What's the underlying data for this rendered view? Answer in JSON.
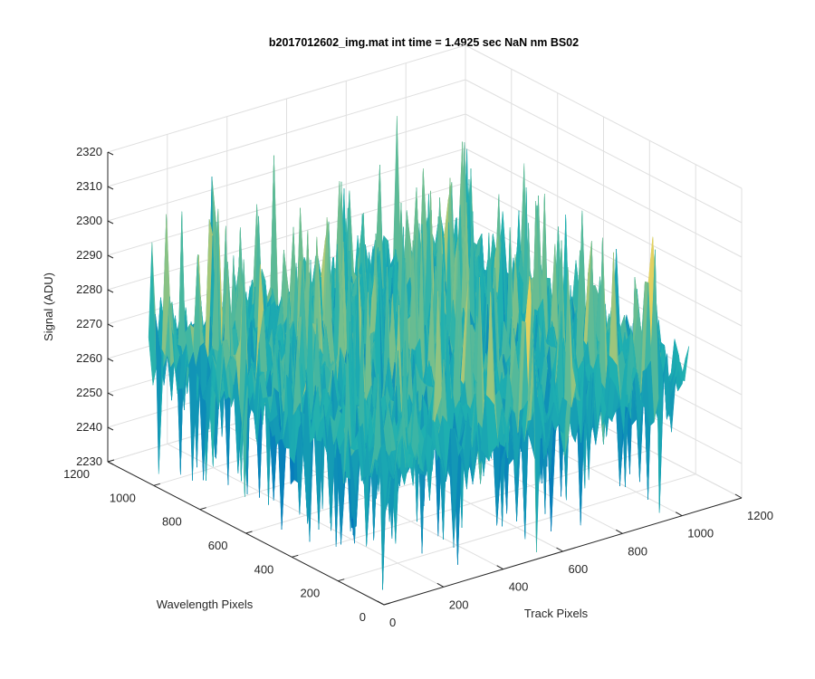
{
  "chart_data": {
    "type": "surface",
    "title": "b2017012602_img.mat int time = 1.4925 sec  NaN nm BS02",
    "xlabel": "Track Pixels",
    "ylabel": "Wavelength Pixels",
    "zlabel": "Signal (ADU)",
    "xlim": [
      0,
      1200
    ],
    "ylim": [
      0,
      1200
    ],
    "zlim": [
      2230,
      2320
    ],
    "x_ticks": [
      "0",
      "200",
      "400",
      "600",
      "800",
      "1000",
      "1200"
    ],
    "y_ticks": [
      "0",
      "200",
      "400",
      "600",
      "800",
      "1000",
      "1200"
    ],
    "z_ticks": [
      "2230",
      "2240",
      "2250",
      "2260",
      "2270",
      "2280",
      "2290",
      "2300",
      "2310",
      "2320"
    ],
    "data_extent": {
      "x": [
        1,
        1024
      ],
      "y": [
        1,
        1024
      ]
    },
    "signal_range": [
      2232,
      2315
    ],
    "signal_typical": 2270,
    "grid": true,
    "colormap": "parula",
    "colors": {
      "low": "#0072BD",
      "mid": "#1FB0B0",
      "high": "#EDD35B",
      "grid": "#dfdfdf",
      "axis": "#262626"
    }
  }
}
